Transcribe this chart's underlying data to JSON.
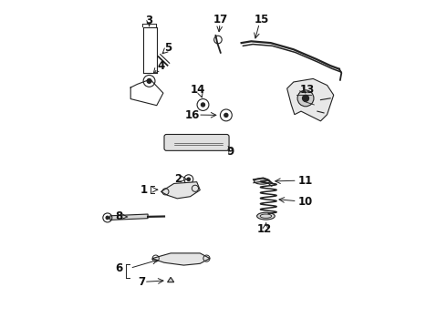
{
  "title": "",
  "bg_color": "#ffffff",
  "fig_width": 4.9,
  "fig_height": 3.6,
  "dpi": 100,
  "line_color": "#222222",
  "fill_light": "#e5e5e5",
  "fill_med": "#d8d8d8"
}
